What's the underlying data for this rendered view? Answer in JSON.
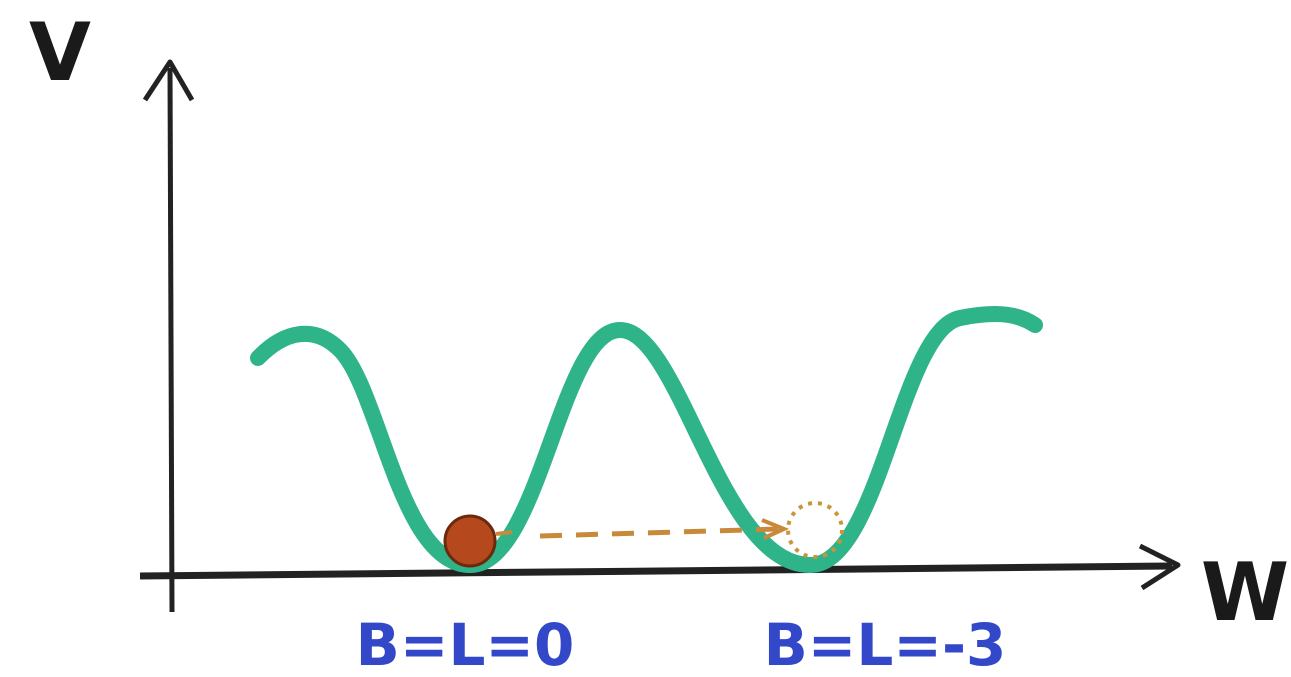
{
  "axes": {
    "y_label": "V",
    "x_label": "W"
  },
  "wells": [
    {
      "label": "B=L=0"
    },
    {
      "label": "B=L=-3"
    }
  ]
}
